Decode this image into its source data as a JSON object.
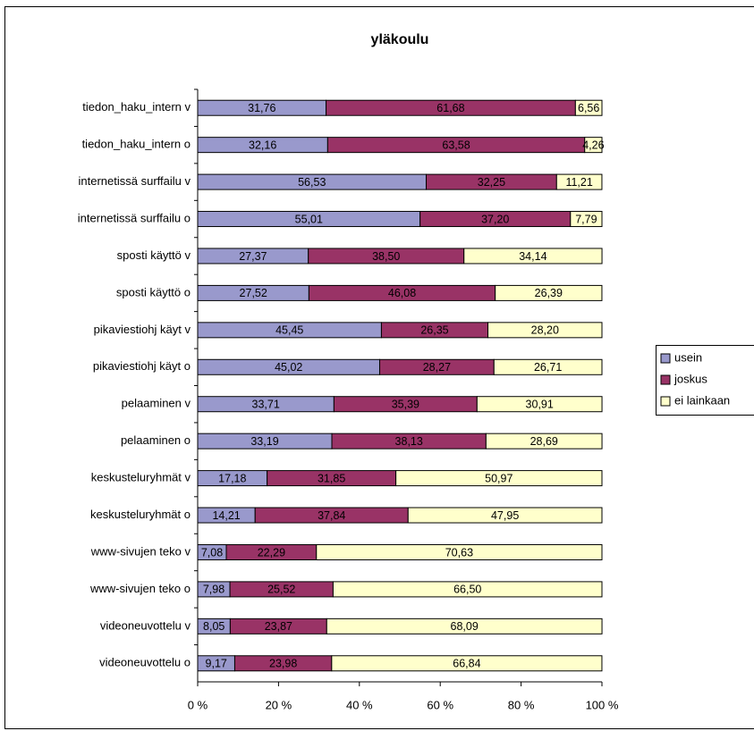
{
  "chart_data": {
    "type": "bar",
    "orientation": "horizontal",
    "stacked": true,
    "title": "yläkoulu",
    "categories": [
      "tiedon_haku_intern v",
      "tiedon_haku_intern o",
      "internetissä surffailu v",
      "internetissä surffailu o",
      "sposti käyttö v",
      "sposti käyttö o",
      "pikaviestiohj käyt v",
      "pikaviestiohj käyt o",
      "pelaaminen v",
      "pelaaminen o",
      "keskusteluryhmät v",
      "keskusteluryhmät o",
      "www-sivujen teko v",
      "www-sivujen teko o",
      "videoneuvottelu v",
      "videoneuvottelu o"
    ],
    "series": [
      {
        "name": "usein",
        "color": "#9999cc",
        "values": [
          31.76,
          32.16,
          56.53,
          55.01,
          27.37,
          27.52,
          45.45,
          45.02,
          33.71,
          33.19,
          17.18,
          14.21,
          7.08,
          7.98,
          8.05,
          9.17
        ],
        "value_labels": [
          "31,76",
          "32,16",
          "56,53",
          "55,01",
          "27,37",
          "27,52",
          "45,45",
          "45,02",
          "33,71",
          "33,19",
          "17,18",
          "14,21",
          "7,08",
          "7,98",
          "8,05",
          "9,17"
        ]
      },
      {
        "name": "joskus",
        "color": "#993366",
        "values": [
          61.68,
          63.58,
          32.25,
          37.2,
          38.5,
          46.08,
          26.35,
          28.27,
          35.39,
          38.13,
          31.85,
          37.84,
          22.29,
          25.52,
          23.87,
          23.98
        ],
        "value_labels": [
          "61,68",
          "63,58",
          "32,25",
          "37,20",
          "38,50",
          "46,08",
          "26,35",
          "28,27",
          "35,39",
          "38,13",
          "31,85",
          "37,84",
          "22,29",
          "25,52",
          "23,87",
          "23,98"
        ]
      },
      {
        "name": "ei lainkaan",
        "color": "#ffffcc",
        "values": [
          6.56,
          4.26,
          11.21,
          7.79,
          34.14,
          26.39,
          28.2,
          26.71,
          30.91,
          28.69,
          50.97,
          47.95,
          70.63,
          66.5,
          68.09,
          66.84
        ],
        "value_labels": [
          "6,56",
          "4,26",
          "11,21",
          "7,79",
          "34,14",
          "26,39",
          "28,20",
          "26,71",
          "30,91",
          "28,69",
          "50,97",
          "47,95",
          "70,63",
          "66,50",
          "68,09",
          "66,84"
        ]
      }
    ],
    "xlim": [
      0,
      100
    ],
    "xticks": [
      {
        "value": 0,
        "label": "0 %"
      },
      {
        "value": 20,
        "label": "20 %"
      },
      {
        "value": 40,
        "label": "40 %"
      },
      {
        "value": 60,
        "label": "60 %"
      },
      {
        "value": 80,
        "label": "80 %"
      },
      {
        "value": 100,
        "label": "100 %"
      }
    ],
    "legend": "right"
  }
}
